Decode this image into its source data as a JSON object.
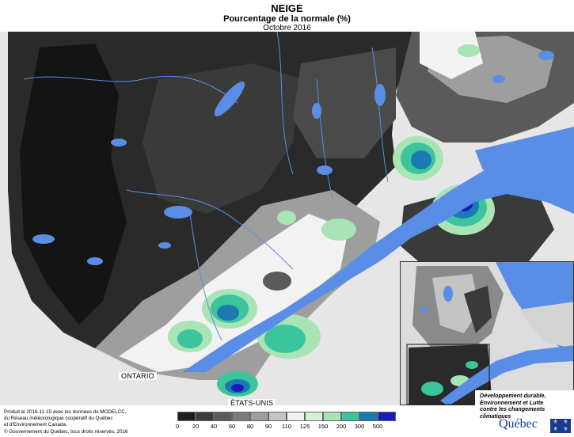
{
  "header": {
    "title": "NEIGE",
    "subtitle": "Pourcentage de la normale (%)",
    "period": "Octobre 2016"
  },
  "places": {
    "ontario": "ONTARIO",
    "usa": "ÉTATS-UNIS"
  },
  "legend": {
    "labels": [
      "0",
      "20",
      "40",
      "60",
      "80",
      "90",
      "110",
      "125",
      "150",
      "200",
      "300",
      "500"
    ],
    "colors": [
      "#1e1e1e",
      "#3c3c3c",
      "#5a5a5a",
      "#7a7a7a",
      "#9e9e9e",
      "#c4c4c4",
      "#f2f2f2",
      "#d4f2d8",
      "#a8e4b4",
      "#3cc49c",
      "#1a7ab4",
      "#1a1ab8"
    ]
  },
  "footer": {
    "note_line1": "Produit le 2016-11-15 avec les données du MODELCC,",
    "note_line2": "du Réseau météorologique coopératif du Québec",
    "note_line3": "et d'Environnement Canada.",
    "copyright": "© Gouvernement du Québec, tous droits réservés, 2016"
  },
  "brand": {
    "line1": "Développement durable,",
    "line2": "Environnement et Lutte",
    "line3": "contre les changements",
    "line4": "climatiques",
    "name": "Québec"
  },
  "colors": {
    "water": "#5a8ee6",
    "land_outside": "#e8e8e8"
  }
}
